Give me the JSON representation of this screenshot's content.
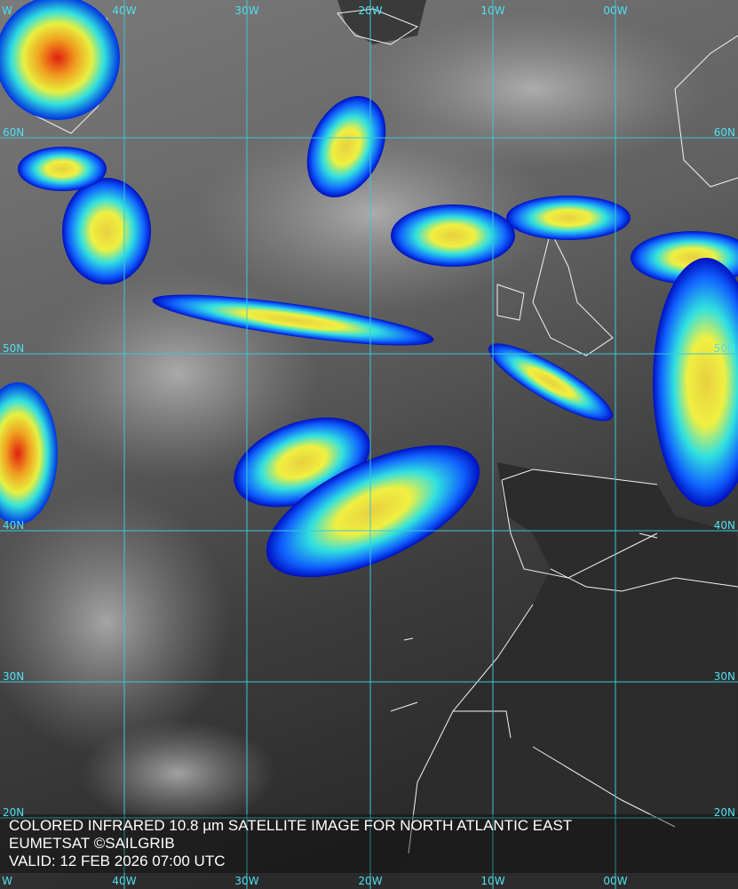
{
  "map": {
    "lon_labels_top": [
      "W",
      "40W",
      "30W",
      "20W",
      "10W",
      "00W"
    ],
    "lon_labels_bottom": [
      "W",
      "40W",
      "30W",
      "20W",
      "10W",
      "00W"
    ],
    "lat_labels_left": [
      "60N",
      "50N",
      "40N",
      "30N",
      "20N"
    ],
    "lat_labels_right": [
      "60N",
      "50N",
      "40N",
      "30N",
      "20N"
    ],
    "caption": [
      "COLORED INFRARED 10.8 µm SATELLITE IMAGE FOR NORTH ATLANTIC EAST",
      "EUMETSAT ©SAILGRIB",
      "VALID:  12 FEB 2026 07:00 UTC"
    ]
  }
}
